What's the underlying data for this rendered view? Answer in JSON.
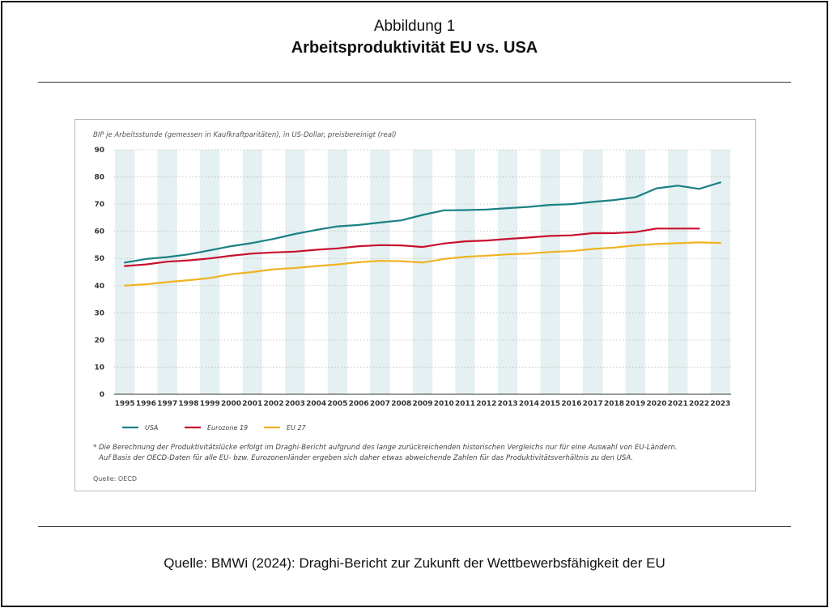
{
  "figure": {
    "label": "Abbildung 1",
    "title": "Arbeitsproduktivität EU vs. USA",
    "source": "Quelle: BMWi (2024): Draghi-Bericht zur Zukunft der Wettbewerbsfähigkeit der EU"
  },
  "chart_data": {
    "type": "line",
    "title": "",
    "ylabel": "BIP je Arbeitsstunde (gemessen in Kaufkraftparitäten), in US-Dollar, preisbereinigt (real)",
    "xlabel": "",
    "ylim": [
      0,
      90
    ],
    "yticks": [
      0,
      10,
      20,
      30,
      40,
      50,
      60,
      70,
      80,
      90
    ],
    "grid": "horizontal dotted, alternating vertical year bands",
    "legend_position": "bottom-left",
    "x": [
      1995,
      1996,
      1997,
      1998,
      1999,
      2000,
      2001,
      2002,
      2003,
      2004,
      2005,
      2006,
      2007,
      2008,
      2009,
      2010,
      2011,
      2012,
      2013,
      2014,
      2015,
      2016,
      2017,
      2018,
      2019,
      2020,
      2021,
      2022,
      2023
    ],
    "series": [
      {
        "name": "USA",
        "color": "#1a8085",
        "values": [
          48.5,
          49.8,
          50.5,
          51.5,
          53.0,
          54.5,
          55.7,
          57.2,
          59.0,
          60.5,
          61.8,
          62.3,
          63.2,
          64.0,
          66.0,
          67.7,
          67.8,
          68.0,
          68.5,
          69.0,
          69.7,
          70.0,
          70.8,
          71.5,
          72.5,
          75.8,
          76.8,
          75.6,
          78.0
        ]
      },
      {
        "name": "Eurozone 19",
        "color": "#c8102e",
        "values": [
          47.2,
          47.8,
          48.8,
          49.3,
          50.0,
          51.0,
          51.8,
          52.2,
          52.5,
          53.2,
          53.7,
          54.5,
          54.9,
          54.8,
          54.2,
          55.5,
          56.3,
          56.6,
          57.2,
          57.7,
          58.3,
          58.5,
          59.3,
          59.3,
          59.7,
          61.0,
          61.0,
          61.0,
          null
        ]
      },
      {
        "name": "EU 27",
        "color": "#f0b323",
        "values": [
          40.0,
          40.5,
          41.3,
          42.0,
          42.8,
          44.2,
          45.0,
          46.0,
          46.5,
          47.2,
          47.8,
          48.6,
          49.1,
          49.0,
          48.5,
          49.8,
          50.6,
          51.0,
          51.5,
          51.8,
          52.4,
          52.7,
          53.5,
          54.0,
          54.8,
          55.3,
          55.6,
          55.9,
          55.7
        ]
      }
    ],
    "footnote": [
      "* Die Berechnung der Produktivitätslücke erfolgt im Draghi-Bericht aufgrund des lange zurückreichenden historischen Vergleichs nur für eine Auswahl von EU-Ländern.",
      "Auf Basis der OECD-Daten für alle EU- bzw. Eurozonenländer ergeben sich daher etwas abweichende Zahlen für das Produktivitätsverhältnis zu den USA."
    ],
    "source": "Quelle: OECD",
    "band_color": "#e4f0f1"
  }
}
